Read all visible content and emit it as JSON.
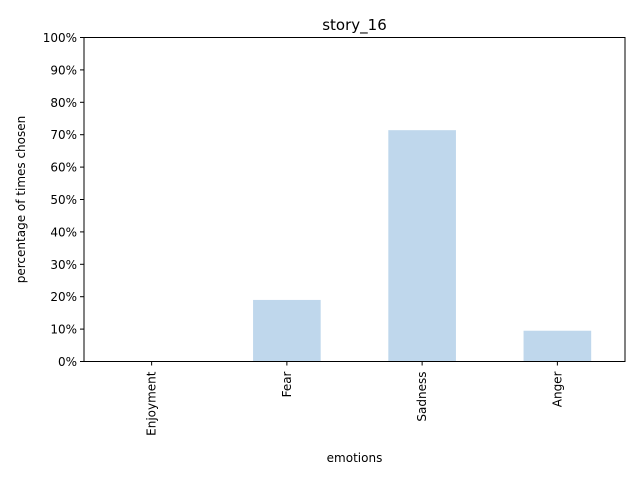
{
  "chart_data": {
    "type": "bar",
    "title": "story_16",
    "xlabel": "emotions",
    "ylabel": "percentage of times chosen",
    "categories": [
      "Enjoyment",
      "Fear",
      "Sadness",
      "Anger"
    ],
    "values": [
      0,
      19,
      71.4,
      9.5
    ],
    "ylim": [
      0,
      100
    ],
    "yticks": [
      "0%",
      "10%",
      "20%",
      "30%",
      "40%",
      "50%",
      "60%",
      "70%",
      "80%",
      "90%",
      "100%"
    ],
    "bar_color": "#bfd7ec",
    "grid": false,
    "legend": "none"
  }
}
